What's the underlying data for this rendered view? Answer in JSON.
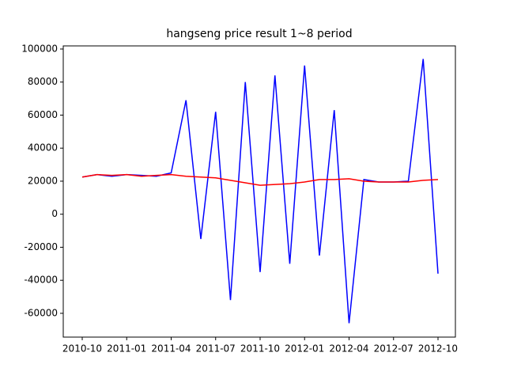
{
  "chart_data": {
    "type": "line",
    "title": "hangseng price result 1~8 period",
    "x": [
      "2010-10",
      "2010-11",
      "2010-12",
      "2011-01",
      "2011-02",
      "2011-03",
      "2011-04",
      "2011-05",
      "2011-06",
      "2011-07",
      "2011-08",
      "2011-09",
      "2011-10",
      "2011-11",
      "2011-12",
      "2012-01",
      "2012-02",
      "2012-03",
      "2012-04",
      "2012-05",
      "2012-06",
      "2012-07",
      "2012-08",
      "2012-09",
      "2012-10"
    ],
    "series": [
      {
        "color": "#0000ff",
        "values": [
          22500,
          24000,
          23000,
          24000,
          23500,
          23000,
          25000,
          69000,
          -15000,
          62000,
          -52000,
          80000,
          -35000,
          84000,
          -30000,
          90000,
          -25000,
          63000,
          -66000,
          21000,
          19500,
          19500,
          20000,
          94000,
          -36000
        ]
      },
      {
        "color": "#ff0000",
        "values": [
          22500,
          24000,
          23500,
          24000,
          23000,
          23500,
          24000,
          23000,
          22500,
          22000,
          20500,
          19000,
          17500,
          18000,
          18500,
          19500,
          21000,
          21000,
          21500,
          20000,
          19500,
          19500,
          19500,
          20500,
          21000
        ]
      }
    ],
    "xticks": [
      "2010-10",
      "2011-01",
      "2011-04",
      "2011-07",
      "2011-10",
      "2012-01",
      "2012-04",
      "2012-07",
      "2012-10"
    ],
    "ylim": [
      -74400,
      101900
    ],
    "yticks": [
      -60000,
      -40000,
      -20000,
      0,
      20000,
      40000,
      60000,
      80000,
      100000
    ],
    "grid": false
  }
}
